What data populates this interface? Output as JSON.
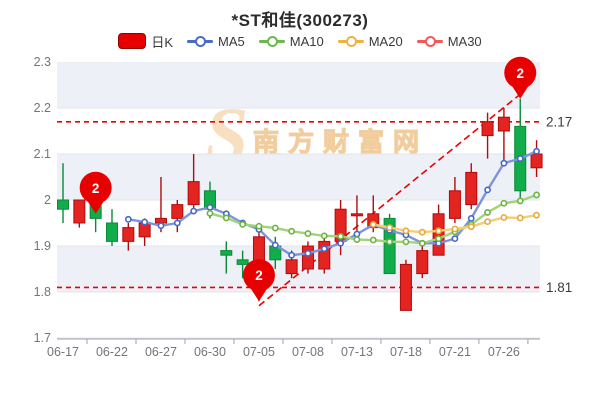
{
  "title": "*ST和佳(300273)",
  "legend": [
    {
      "label": "日K",
      "type": "candle",
      "color": "#e60000"
    },
    {
      "label": "MA5",
      "type": "line",
      "color": "#4a6cc3"
    },
    {
      "label": "MA10",
      "type": "line",
      "color": "#6db74e"
    },
    {
      "label": "MA20",
      "type": "line",
      "color": "#f3b13c"
    },
    {
      "label": "MA30",
      "type": "line",
      "color": "#ee5b5b"
    }
  ],
  "watermark": {
    "s": "S",
    "cn": "南方财富网",
    "en": "outhmoney.com"
  },
  "chart_data": {
    "type": "candlestick",
    "ylim": [
      1.7,
      2.3
    ],
    "y_ticks": [
      "2.3",
      "2.2",
      "2.1",
      "2",
      "1.9",
      "1.8",
      "1.7"
    ],
    "x_tick_labels": [
      "06-17",
      "06-22",
      "06-27",
      "06-30",
      "07-05",
      "07-08",
      "07-13",
      "07-18",
      "07-21",
      "07-26"
    ],
    "x_tick_indices": [
      0,
      3,
      6,
      9,
      12,
      15,
      18,
      21,
      24,
      27
    ],
    "grid_band_color": "#eef0f7",
    "up_color": "#e42420",
    "up_border": "#b00c0c",
    "down_color": "#10ad4a",
    "down_border": "#0a8a38",
    "dates": [
      "06-17",
      "06-20",
      "06-21",
      "06-22",
      "06-23",
      "06-24",
      "06-27",
      "06-28",
      "06-29",
      "06-30",
      "07-01",
      "07-04",
      "07-05",
      "07-06",
      "07-07",
      "07-08",
      "07-11",
      "07-12",
      "07-13",
      "07-14",
      "07-15",
      "07-18",
      "07-19",
      "07-20",
      "07-21",
      "07-22",
      "07-25",
      "07-26",
      "07-27",
      "07-28"
    ],
    "candles_ohlc": [
      [
        2.0,
        1.98,
        2.08,
        1.95
      ],
      [
        1.95,
        2.0,
        2.0,
        1.94
      ],
      [
        1.99,
        1.96,
        1.99,
        1.93
      ],
      [
        1.95,
        1.91,
        1.98,
        1.9
      ],
      [
        1.91,
        1.94,
        1.95,
        1.89
      ],
      [
        1.92,
        1.95,
        1.96,
        1.9
      ],
      [
        1.95,
        1.96,
        2.05,
        1.93
      ],
      [
        1.96,
        1.99,
        2.0,
        1.93
      ],
      [
        1.99,
        2.04,
        2.1,
        1.97
      ],
      [
        2.02,
        1.98,
        2.04,
        1.96
      ],
      [
        1.89,
        1.88,
        1.91,
        1.84
      ],
      [
        1.87,
        1.86,
        1.89,
        1.83
      ],
      [
        1.8,
        1.92,
        1.95,
        1.78
      ],
      [
        1.9,
        1.87,
        1.92,
        1.85
      ],
      [
        1.84,
        1.87,
        1.89,
        1.83
      ],
      [
        1.85,
        1.9,
        1.91,
        1.84
      ],
      [
        1.85,
        1.91,
        1.92,
        1.84
      ],
      [
        1.91,
        1.98,
        2.0,
        1.88
      ],
      [
        1.97,
        1.97,
        2.01,
        1.93
      ],
      [
        1.94,
        1.97,
        2.01,
        1.93
      ],
      [
        1.96,
        1.84,
        1.97,
        1.84
      ],
      [
        1.76,
        1.86,
        1.87,
        1.76
      ],
      [
        1.84,
        1.89,
        1.9,
        1.83
      ],
      [
        1.88,
        1.97,
        1.99,
        1.88
      ],
      [
        1.96,
        2.02,
        2.05,
        1.95
      ],
      [
        1.99,
        2.06,
        2.08,
        1.98
      ],
      [
        2.14,
        2.17,
        2.19,
        2.09
      ],
      [
        2.15,
        2.18,
        2.2,
        2.08
      ],
      [
        2.16,
        2.02,
        2.22,
        2.0
      ],
      [
        2.07,
        2.1,
        2.13,
        2.05
      ]
    ],
    "series": [
      {
        "name": "MA5",
        "color": "#7e93d8",
        "marker_color": "#4468c8",
        "start": 4,
        "values": [
          1.958,
          1.952,
          1.944,
          1.95,
          1.976,
          1.984,
          1.97,
          1.95,
          1.936,
          1.902,
          1.88,
          1.884,
          1.894,
          1.906,
          1.926,
          1.946,
          1.934,
          1.924,
          1.906,
          1.906,
          1.916,
          1.96,
          2.022,
          2.08,
          2.09,
          2.106
        ]
      },
      {
        "name": "MA10",
        "color": "#9fd478",
        "marker_color": "#6cb43e",
        "start": 9,
        "values": [
          1.971,
          1.961,
          1.947,
          1.943,
          1.939,
          1.932,
          1.927,
          1.922,
          1.921,
          1.914,
          1.913,
          1.909,
          1.909,
          1.906,
          1.916,
          1.931,
          1.947,
          1.973,
          1.993,
          1.998,
          2.011
        ]
      },
      {
        "name": "MA20",
        "color": "#f7cd74",
        "marker_color": "#e8a93a",
        "start": 19,
        "values": [
          1.947,
          1.94,
          1.933,
          1.93,
          1.933,
          1.937,
          1.942,
          1.953,
          1.962,
          1.961,
          1.967
        ]
      }
    ],
    "annotations": {
      "resistance": {
        "value": 2.17,
        "label": "2.17"
      },
      "support": {
        "value": 1.81,
        "label": "1.81"
      },
      "line_color": "#ec0000",
      "trendline": {
        "from_index": 12,
        "from_price": 1.77,
        "to_index": 28,
        "to_price": 2.23
      },
      "markers": [
        {
          "label": "2",
          "index": 2,
          "price": 1.97
        },
        {
          "label": "2",
          "index": 12,
          "price": 1.78
        },
        {
          "label": "2",
          "index": 28,
          "price": 2.22
        }
      ],
      "marker_color": "#e60000"
    },
    "axis_color": "#a0a2aa",
    "tick_label_color": "#73757d",
    "grid_line_color": "#e3e5ee"
  }
}
